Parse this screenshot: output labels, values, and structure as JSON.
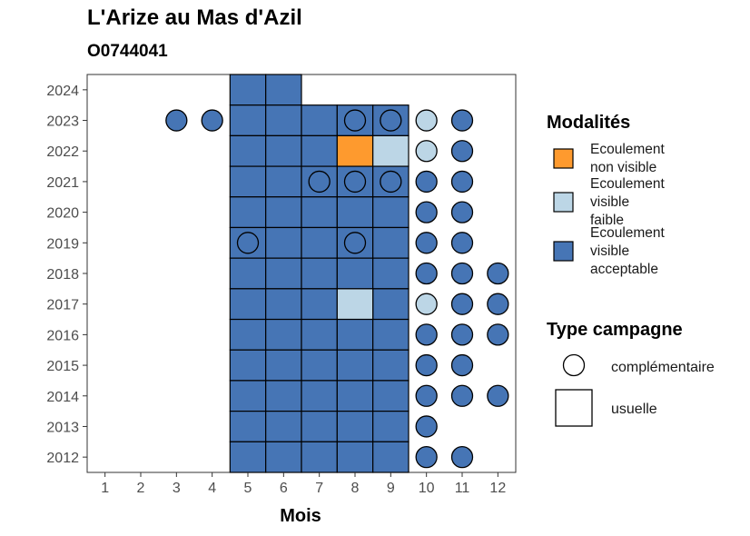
{
  "title": "L'Arize au Mas d'Azil",
  "subtitle": "O0744041",
  "chart_data": {
    "type": "heatmap",
    "title": "L'Arize au Mas d'Azil",
    "subtitle": "O0744041",
    "xlabel": "Mois",
    "ylabel": "",
    "x_ticks": [
      "1",
      "2",
      "3",
      "4",
      "5",
      "6",
      "7",
      "8",
      "9",
      "10",
      "11",
      "12"
    ],
    "y_ticks": [
      "2012",
      "2013",
      "2014",
      "2015",
      "2016",
      "2017",
      "2018",
      "2019",
      "2020",
      "2021",
      "2022",
      "2023",
      "2024"
    ],
    "xlim": [
      0.5,
      12.5
    ],
    "ylim": [
      2011.5,
      2024.5
    ],
    "grid": false,
    "legend_position": "right",
    "colors": {
      "Ecoulement non visible": "#fe9a2e",
      "Ecoulement visible faible": "#bcd6e6",
      "Ecoulement visible acceptable": "#4675b5"
    },
    "legend": {
      "modalites_title": "Modalités",
      "modalites": [
        {
          "key": "Ecoulement non visible",
          "lines": [
            "Ecoulement",
            "non visible"
          ]
        },
        {
          "key": "Ecoulement visible faible",
          "lines": [
            "Ecoulement",
            "visible",
            "faible"
          ]
        },
        {
          "key": "Ecoulement visible acceptable",
          "lines": [
            "Ecoulement",
            "visible",
            "acceptable"
          ]
        }
      ],
      "type_title": "Type campagne",
      "types": [
        {
          "key": "complementaire",
          "label": "complémentaire",
          "shape": "circle"
        },
        {
          "key": "usuelle",
          "label": "usuelle",
          "shape": "square"
        }
      ]
    },
    "squares": [
      {
        "year": 2024,
        "months": [
          5,
          6
        ],
        "modalite": "Ecoulement visible acceptable"
      },
      {
        "year": 2023,
        "months": [
          5,
          6,
          7,
          8,
          9
        ],
        "modalite": "Ecoulement visible acceptable"
      },
      {
        "year": 2022,
        "months": [
          5,
          6,
          7
        ],
        "modalite": "Ecoulement visible acceptable"
      },
      {
        "year": 2022,
        "months": [
          8
        ],
        "modalite": "Ecoulement non visible"
      },
      {
        "year": 2022,
        "months": [
          9
        ],
        "modalite": "Ecoulement visible faible"
      },
      {
        "year": 2021,
        "months": [
          5,
          6,
          7,
          8,
          9
        ],
        "modalite": "Ecoulement visible acceptable"
      },
      {
        "year": 2020,
        "months": [
          5,
          6,
          7,
          8,
          9
        ],
        "modalite": "Ecoulement visible acceptable"
      },
      {
        "year": 2019,
        "months": [
          5,
          6,
          7,
          8,
          9
        ],
        "modalite": "Ecoulement visible acceptable"
      },
      {
        "year": 2018,
        "months": [
          5,
          6,
          7,
          8,
          9
        ],
        "modalite": "Ecoulement visible acceptable"
      },
      {
        "year": 2017,
        "months": [
          5,
          6,
          7,
          9
        ],
        "modalite": "Ecoulement visible acceptable"
      },
      {
        "year": 2017,
        "months": [
          8
        ],
        "modalite": "Ecoulement visible faible"
      },
      {
        "year": 2016,
        "months": [
          5,
          6,
          7,
          8,
          9
        ],
        "modalite": "Ecoulement visible acceptable"
      },
      {
        "year": 2015,
        "months": [
          5,
          6,
          7,
          8,
          9
        ],
        "modalite": "Ecoulement visible acceptable"
      },
      {
        "year": 2014,
        "months": [
          5,
          6,
          7,
          8,
          9
        ],
        "modalite": "Ecoulement visible acceptable"
      },
      {
        "year": 2013,
        "months": [
          5,
          6,
          7,
          8,
          9
        ],
        "modalite": "Ecoulement visible acceptable"
      },
      {
        "year": 2012,
        "months": [
          5,
          6,
          7,
          8,
          9
        ],
        "modalite": "Ecoulement visible acceptable"
      }
    ],
    "circles": [
      {
        "year": 2023,
        "month": 3,
        "modalite": "Ecoulement visible acceptable"
      },
      {
        "year": 2023,
        "month": 4,
        "modalite": "Ecoulement visible acceptable"
      },
      {
        "year": 2023,
        "month": 8,
        "modalite": "Ecoulement visible acceptable"
      },
      {
        "year": 2023,
        "month": 9,
        "modalite": "Ecoulement visible acceptable"
      },
      {
        "year": 2023,
        "month": 10,
        "modalite": "Ecoulement visible faible"
      },
      {
        "year": 2023,
        "month": 11,
        "modalite": "Ecoulement visible acceptable"
      },
      {
        "year": 2022,
        "month": 10,
        "modalite": "Ecoulement visible faible"
      },
      {
        "year": 2022,
        "month": 11,
        "modalite": "Ecoulement visible acceptable"
      },
      {
        "year": 2021,
        "month": 7,
        "modalite": "Ecoulement visible acceptable"
      },
      {
        "year": 2021,
        "month": 8,
        "modalite": "Ecoulement visible acceptable"
      },
      {
        "year": 2021,
        "month": 9,
        "modalite": "Ecoulement visible acceptable"
      },
      {
        "year": 2021,
        "month": 10,
        "modalite": "Ecoulement visible acceptable"
      },
      {
        "year": 2021,
        "month": 11,
        "modalite": "Ecoulement visible acceptable"
      },
      {
        "year": 2020,
        "month": 10,
        "modalite": "Ecoulement visible acceptable"
      },
      {
        "year": 2020,
        "month": 11,
        "modalite": "Ecoulement visible acceptable"
      },
      {
        "year": 2019,
        "month": 5,
        "modalite": "Ecoulement visible acceptable"
      },
      {
        "year": 2019,
        "month": 8,
        "modalite": "Ecoulement visible acceptable"
      },
      {
        "year": 2019,
        "month": 10,
        "modalite": "Ecoulement visible acceptable"
      },
      {
        "year": 2019,
        "month": 11,
        "modalite": "Ecoulement visible acceptable"
      },
      {
        "year": 2018,
        "month": 10,
        "modalite": "Ecoulement visible acceptable"
      },
      {
        "year": 2018,
        "month": 11,
        "modalite": "Ecoulement visible acceptable"
      },
      {
        "year": 2018,
        "month": 12,
        "modalite": "Ecoulement visible acceptable"
      },
      {
        "year": 2017,
        "month": 10,
        "modalite": "Ecoulement visible faible"
      },
      {
        "year": 2017,
        "month": 11,
        "modalite": "Ecoulement visible acceptable"
      },
      {
        "year": 2017,
        "month": 12,
        "modalite": "Ecoulement visible acceptable"
      },
      {
        "year": 2016,
        "month": 10,
        "modalite": "Ecoulement visible acceptable"
      },
      {
        "year": 2016,
        "month": 11,
        "modalite": "Ecoulement visible acceptable"
      },
      {
        "year": 2016,
        "month": 12,
        "modalite": "Ecoulement visible acceptable"
      },
      {
        "year": 2015,
        "month": 10,
        "modalite": "Ecoulement visible acceptable"
      },
      {
        "year": 2015,
        "month": 11,
        "modalite": "Ecoulement visible acceptable"
      },
      {
        "year": 2014,
        "month": 10,
        "modalite": "Ecoulement visible acceptable"
      },
      {
        "year": 2014,
        "month": 11,
        "modalite": "Ecoulement visible acceptable"
      },
      {
        "year": 2014,
        "month": 12,
        "modalite": "Ecoulement visible acceptable"
      },
      {
        "year": 2013,
        "month": 10,
        "modalite": "Ecoulement visible acceptable"
      },
      {
        "year": 2012,
        "month": 10,
        "modalite": "Ecoulement visible acceptable"
      },
      {
        "year": 2012,
        "month": 11,
        "modalite": "Ecoulement visible acceptable"
      }
    ]
  }
}
